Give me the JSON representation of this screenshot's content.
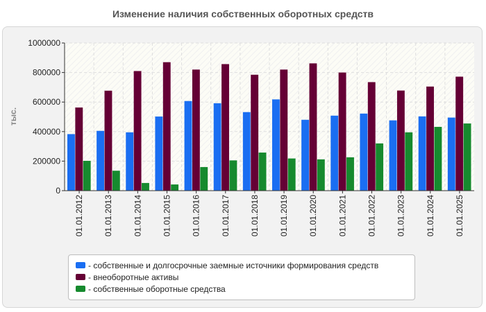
{
  "chart_data": {
    "type": "bar",
    "title": "Изменение наличия собственных оборотных средств",
    "ylabel": "тыс.",
    "xlabel": "",
    "ylim": [
      0,
      1000000
    ],
    "yticks": [
      "0",
      "200000",
      "400000",
      "600000",
      "800000",
      "1000000"
    ],
    "grid": true,
    "legend_position": "bottom",
    "categories": [
      "01.01.2012",
      "01.01.2013",
      "01.01.2014",
      "01.01.2015",
      "01.01.2016",
      "01.01.2017",
      "01.01.2018",
      "01.01.2019",
      "01.01.2020",
      "01.01.2021",
      "01.01.2022",
      "01.01.2023",
      "01.01.2024",
      "01.01.2025"
    ],
    "series": [
      {
        "name": "- собственные и долгосрочные заемные источники формирования средств",
        "color": "#1a6ef2",
        "values": [
          383000,
          405000,
          395000,
          502000,
          607000,
          592000,
          532000,
          618000,
          480000,
          508000,
          522000,
          476000,
          503000,
          495000
        ]
      },
      {
        "name": "- внеоборотные активы",
        "color": "#650035",
        "values": [
          563000,
          677000,
          810000,
          870000,
          820000,
          857000,
          785000,
          820000,
          862000,
          800000,
          735000,
          678000,
          705000,
          772000
        ]
      },
      {
        "name": "- собственные оборотные средства",
        "color": "#168a2e",
        "values": [
          202000,
          135000,
          52000,
          42000,
          160000,
          205000,
          258000,
          218000,
          212000,
          226000,
          320000,
          395000,
          432000,
          455000
        ]
      }
    ]
  }
}
